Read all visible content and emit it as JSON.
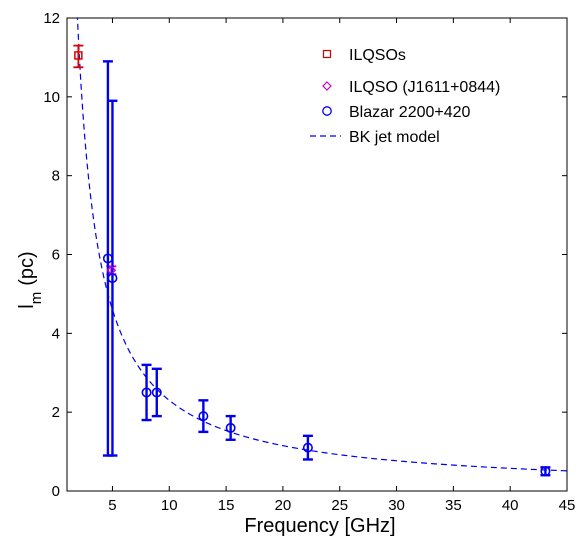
{
  "chart_data": {
    "type": "scatter",
    "xlabel": "Frequency [GHz]",
    "ylabel_main": "l",
    "ylabel_sub": "m",
    "ylabel_unit": "(pc)",
    "xlim": [
      1,
      45
    ],
    "ylim": [
      0,
      12
    ],
    "xticks": [
      5,
      10,
      15,
      20,
      25,
      30,
      35,
      40,
      45
    ],
    "yticks": [
      0,
      2,
      4,
      6,
      8,
      10,
      12
    ],
    "grid": false,
    "legend_position": "top-right",
    "series": [
      {
        "name": "ILQSOs",
        "marker": "square",
        "color": "#dd0000",
        "points": [
          {
            "x": 2.0,
            "y": 11.05,
            "lo": 10.75,
            "hi": 11.3
          }
        ]
      },
      {
        "name": "ILQSO (J1611+0844)",
        "marker": "diamond",
        "color": "#cc00cc",
        "points": [
          {
            "x": 4.9,
            "y": 5.6,
            "lo": 5.5,
            "hi": 5.7
          }
        ]
      },
      {
        "name": "Blazar 2200+420",
        "marker": "circle",
        "color": "#0000ee",
        "points": [
          {
            "x": 4.6,
            "y": 5.9,
            "lo": 0.9,
            "hi": 10.9
          },
          {
            "x": 5.0,
            "y": 5.4,
            "lo": 0.9,
            "hi": 9.9
          },
          {
            "x": 8.0,
            "y": 2.5,
            "lo": 1.8,
            "hi": 3.2
          },
          {
            "x": 8.9,
            "y": 2.5,
            "lo": 1.9,
            "hi": 3.1
          },
          {
            "x": 13.0,
            "y": 1.9,
            "lo": 1.5,
            "hi": 2.3
          },
          {
            "x": 15.4,
            "y": 1.6,
            "lo": 1.3,
            "hi": 1.9
          },
          {
            "x": 22.2,
            "y": 1.1,
            "lo": 0.8,
            "hi": 1.4
          },
          {
            "x": 43.1,
            "y": 0.5,
            "lo": 0.4,
            "hi": 0.6
          }
        ]
      },
      {
        "name": "BK jet model",
        "line": "dashed",
        "color": "#0000ee",
        "model": {
          "form": "y = k / x",
          "k": 23.0,
          "x_range": [
            1.9,
            45
          ]
        }
      }
    ]
  }
}
